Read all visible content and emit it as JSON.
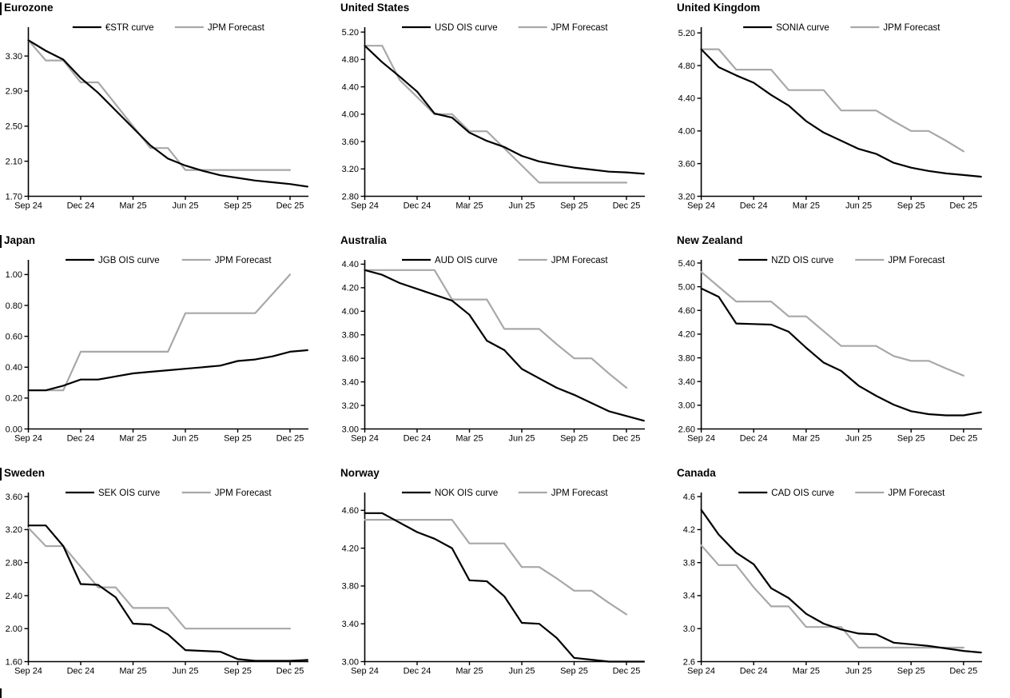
{
  "page": {
    "background": "#ffffff",
    "accent_black": "#000000",
    "accent_gray": "#a8a8a8"
  },
  "chart_data": [
    {
      "type": "line",
      "title": "Eurozone",
      "left_bar": true,
      "x_tick_labels": [
        "Sep 24",
        "Dec 24",
        "Mar 25",
        "Jun 25",
        "Sep 25",
        "Dec 25"
      ],
      "y_ticks": [
        1.7,
        2.1,
        2.5,
        2.9,
        3.3
      ],
      "y_tick_labels": [
        "1.70",
        "2.10",
        "2.50",
        "2.90",
        "3.30"
      ],
      "ylim": [
        1.7,
        3.62
      ],
      "legend_position": "top-center",
      "grid": false,
      "series": [
        {
          "name": "JPM Forecast",
          "color": "#a8a8a8",
          "values": [
            3.48,
            3.25,
            3.25,
            3.0,
            3.0,
            2.75,
            2.5,
            2.25,
            2.25,
            2.0,
            2.0,
            2.0,
            2.0,
            2.0,
            2.0,
            2.0
          ]
        },
        {
          "name": "€STR curve",
          "color": "#000000",
          "values": [
            3.48,
            3.36,
            3.26,
            3.05,
            2.88,
            2.68,
            2.48,
            2.28,
            2.13,
            2.05,
            1.99,
            1.94,
            1.91,
            1.88,
            1.86,
            1.84,
            1.81
          ]
        }
      ]
    },
    {
      "type": "line",
      "title": "United States",
      "left_bar": false,
      "x_tick_labels": [
        "Sep 24",
        "Dec 24",
        "Mar 25",
        "Jun 25",
        "Sep 25",
        "Dec 25"
      ],
      "y_ticks": [
        2.8,
        3.2,
        3.6,
        4.0,
        4.4,
        4.8,
        5.2
      ],
      "y_tick_labels": [
        "2.80",
        "3.20",
        "3.60",
        "4.00",
        "4.40",
        "4.80",
        "5.20"
      ],
      "ylim": [
        2.8,
        5.26
      ],
      "legend_position": "top-center",
      "grid": false,
      "series": [
        {
          "name": "JPM Forecast",
          "color": "#a8a8a8",
          "values": [
            5.0,
            5.0,
            4.5,
            4.25,
            4.0,
            4.0,
            3.75,
            3.75,
            3.5,
            3.25,
            3.0,
            3.0,
            3.0,
            3.0,
            3.0,
            3.0
          ]
        },
        {
          "name": "USD OIS curve",
          "color": "#000000",
          "values": [
            5.0,
            4.76,
            4.55,
            4.33,
            4.01,
            3.95,
            3.73,
            3.61,
            3.52,
            3.39,
            3.31,
            3.26,
            3.22,
            3.19,
            3.16,
            3.15,
            3.13
          ]
        }
      ]
    },
    {
      "type": "line",
      "title": "United Kingdom",
      "left_bar": false,
      "x_tick_labels": [
        "Sep 24",
        "Dec 24",
        "Mar 25",
        "Jun 25",
        "Sep 25",
        "Dec 25"
      ],
      "y_ticks": [
        3.2,
        3.6,
        4.0,
        4.4,
        4.8,
        5.2
      ],
      "y_tick_labels": [
        "3.20",
        "3.60",
        "4.00",
        "4.40",
        "4.80",
        "5.20"
      ],
      "ylim": [
        3.2,
        5.26
      ],
      "legend_position": "top-center",
      "grid": false,
      "series": [
        {
          "name": "JPM Forecast",
          "color": "#a8a8a8",
          "values": [
            5.0,
            5.0,
            4.75,
            4.75,
            4.75,
            4.5,
            4.5,
            4.5,
            4.25,
            4.25,
            4.25,
            4.12,
            4.0,
            4.0,
            3.88,
            3.75
          ]
        },
        {
          "name": "SONIA curve",
          "color": "#000000",
          "values": [
            5.0,
            4.78,
            4.68,
            4.59,
            4.44,
            4.31,
            4.12,
            3.98,
            3.88,
            3.78,
            3.72,
            3.61,
            3.55,
            3.51,
            3.48,
            3.46,
            3.44
          ]
        }
      ]
    },
    {
      "type": "line",
      "title": "Japan",
      "left_bar": true,
      "x_tick_labels": [
        "Sep 24",
        "Dec 24",
        "Mar 25",
        "Jun 25",
        "Sep 25",
        "Dec 25"
      ],
      "y_ticks": [
        0.0,
        0.2,
        0.4,
        0.6,
        0.8,
        1.0
      ],
      "y_tick_labels": [
        "0.00",
        "0.20",
        "0.40",
        "0.60",
        "0.80",
        "1.00"
      ],
      "ylim": [
        0.0,
        1.09
      ],
      "legend_position": "top-center",
      "grid": false,
      "series": [
        {
          "name": "JPM Forecast",
          "color": "#a8a8a8",
          "values": [
            0.25,
            0.25,
            0.25,
            0.5,
            0.5,
            0.5,
            0.5,
            0.5,
            0.5,
            0.75,
            0.75,
            0.75,
            0.75,
            0.75,
            0.875,
            1.0
          ]
        },
        {
          "name": "JGB OIS curve",
          "color": "#000000",
          "values": [
            0.25,
            0.25,
            0.28,
            0.32,
            0.32,
            0.34,
            0.36,
            0.37,
            0.38,
            0.39,
            0.4,
            0.41,
            0.44,
            0.45,
            0.47,
            0.5,
            0.51
          ]
        }
      ]
    },
    {
      "type": "line",
      "title": "Australia",
      "left_bar": false,
      "x_tick_labels": [
        "Sep 24",
        "Dec 24",
        "Mar 25",
        "Jun 25",
        "Sep 25",
        "Dec 25"
      ],
      "y_ticks": [
        3.0,
        3.2,
        3.4,
        3.6,
        3.8,
        4.0,
        4.2,
        4.4
      ],
      "y_tick_labels": [
        "3.00",
        "3.20",
        "3.40",
        "3.60",
        "3.80",
        "4.00",
        "4.20",
        "4.40"
      ],
      "ylim": [
        3.0,
        4.43
      ],
      "legend_position": "top-center",
      "grid": false,
      "series": [
        {
          "name": "JPM Forecast",
          "color": "#a8a8a8",
          "values": [
            4.35,
            4.35,
            4.35,
            4.35,
            4.35,
            4.1,
            4.1,
            4.1,
            3.85,
            3.85,
            3.85,
            3.72,
            3.6,
            3.6,
            3.47,
            3.35
          ]
        },
        {
          "name": "AUD OIS curve",
          "color": "#000000",
          "values": [
            4.35,
            4.31,
            4.24,
            4.19,
            4.14,
            4.09,
            3.97,
            3.75,
            3.67,
            3.51,
            3.43,
            3.35,
            3.29,
            3.22,
            3.15,
            3.11,
            3.07
          ]
        }
      ]
    },
    {
      "type": "line",
      "title": "New Zealand",
      "left_bar": false,
      "x_tick_labels": [
        "Sep 24",
        "Dec 24",
        "Mar 25",
        "Jun 25",
        "Sep 25",
        "Dec 25"
      ],
      "y_ticks": [
        2.6,
        3.0,
        3.4,
        3.8,
        4.2,
        4.6,
        5.0,
        5.4
      ],
      "y_tick_labels": [
        "2.60",
        "3.00",
        "3.40",
        "3.80",
        "4.20",
        "4.60",
        "5.00",
        "5.40"
      ],
      "ylim": [
        2.6,
        5.44
      ],
      "legend_position": "top-center",
      "grid": false,
      "series": [
        {
          "name": "JPM Forecast",
          "color": "#a8a8a8",
          "values": [
            5.25,
            5.0,
            4.75,
            4.75,
            4.75,
            4.5,
            4.5,
            4.25,
            4.0,
            4.0,
            4.0,
            3.83,
            3.75,
            3.75,
            3.62,
            3.5
          ]
        },
        {
          "name": "NZD OIS curve",
          "color": "#000000",
          "values": [
            4.97,
            4.83,
            4.38,
            4.37,
            4.36,
            4.24,
            3.97,
            3.72,
            3.58,
            3.33,
            3.16,
            3.01,
            2.9,
            2.85,
            2.83,
            2.83,
            2.88
          ]
        }
      ]
    },
    {
      "type": "line",
      "title": "Sweden",
      "left_bar": true,
      "x_tick_labels": [
        "Sep 24",
        "Dec 24",
        "Mar 25",
        "Jun 25",
        "Sep 25",
        "Dec 25"
      ],
      "y_ticks": [
        1.6,
        2.0,
        2.4,
        2.8,
        3.2,
        3.6
      ],
      "y_tick_labels": [
        "1.60",
        "2.00",
        "2.40",
        "2.80",
        "3.20",
        "3.60"
      ],
      "ylim": [
        1.6,
        3.64
      ],
      "legend_position": "top-center",
      "grid": false,
      "series": [
        {
          "name": "JPM Forecast",
          "color": "#a8a8a8",
          "values": [
            3.22,
            3.0,
            3.0,
            2.75,
            2.5,
            2.5,
            2.25,
            2.25,
            2.25,
            2.0,
            2.0,
            2.0,
            2.0,
            2.0,
            2.0,
            2.0
          ]
        },
        {
          "name": "SEK OIS curve",
          "color": "#000000",
          "values": [
            3.25,
            3.25,
            3.0,
            2.54,
            2.53,
            2.38,
            2.06,
            2.05,
            1.93,
            1.74,
            1.73,
            1.72,
            1.63,
            1.61,
            1.61,
            1.61,
            1.62
          ]
        }
      ]
    },
    {
      "type": "line",
      "title": "Norway",
      "left_bar": false,
      "x_tick_labels": [
        "Sep 24",
        "Dec 24",
        "Mar 25",
        "Jun 25",
        "Sep 25",
        "Dec 25"
      ],
      "y_ticks": [
        3.0,
        3.4,
        3.8,
        4.2,
        4.6
      ],
      "y_tick_labels": [
        "3.00",
        "3.40",
        "3.80",
        "4.20",
        "4.60"
      ],
      "ylim": [
        3.0,
        4.78
      ],
      "legend_position": "top-center",
      "grid": false,
      "series": [
        {
          "name": "JPM Forecast",
          "color": "#a8a8a8",
          "values": [
            4.5,
            4.5,
            4.5,
            4.5,
            4.5,
            4.5,
            4.25,
            4.25,
            4.25,
            4.0,
            4.0,
            3.88,
            3.75,
            3.75,
            3.62,
            3.5
          ]
        },
        {
          "name": "NOK OIS curve",
          "color": "#000000",
          "values": [
            4.57,
            4.57,
            4.47,
            4.37,
            4.3,
            4.2,
            3.86,
            3.85,
            3.69,
            3.41,
            3.4,
            3.25,
            3.04,
            3.02,
            3.0,
            3.0,
            3.0
          ]
        }
      ]
    },
    {
      "type": "line",
      "title": "Canada",
      "left_bar": false,
      "x_tick_labels": [
        "Sep 24",
        "Dec 24",
        "Mar 25",
        "Jun 25",
        "Sep 25",
        "Dec 25"
      ],
      "y_ticks": [
        2.6,
        3.0,
        3.4,
        3.8,
        4.2,
        4.6
      ],
      "y_tick_labels": [
        "2.6",
        "3.0",
        "3.4",
        "3.8",
        "4.2",
        "4.6"
      ],
      "ylim": [
        2.6,
        4.64
      ],
      "legend_position": "top-center",
      "grid": false,
      "series": [
        {
          "name": "JPM Forecast",
          "color": "#a8a8a8",
          "values": [
            4.01,
            3.77,
            3.77,
            3.5,
            3.27,
            3.27,
            3.02,
            3.02,
            3.02,
            2.77,
            2.77,
            2.77,
            2.77,
            2.77,
            2.77,
            2.77
          ]
        },
        {
          "name": "CAD OIS curve",
          "color": "#000000",
          "values": [
            4.44,
            4.14,
            3.92,
            3.78,
            3.49,
            3.37,
            3.18,
            3.06,
            2.99,
            2.94,
            2.93,
            2.83,
            2.81,
            2.79,
            2.76,
            2.73,
            2.71
          ]
        }
      ]
    }
  ]
}
